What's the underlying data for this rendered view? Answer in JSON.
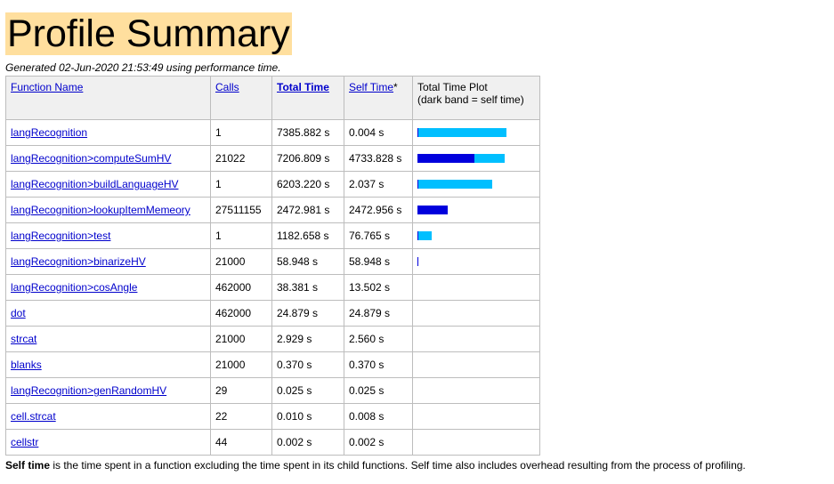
{
  "title": "Profile Summary",
  "generated": "Generated 02-Jun-2020 21:53:49 using performance time.",
  "headers": {
    "function_name": "Function Name",
    "calls": "Calls",
    "total_time": "Total Time",
    "self_time": "Self Time",
    "self_time_star": "*",
    "plot_line1": "Total Time Plot",
    "plot_line2": "(dark band = self time)"
  },
  "rows": [
    {
      "name": "langRecognition",
      "calls": "1",
      "total": "7385.882 s",
      "self": "0.004 s",
      "total_frac": 1.0,
      "self_frac": 0.0
    },
    {
      "name": "langRecognition>computeSumHV",
      "calls": "21022",
      "total": "7206.809 s",
      "self": "4733.828 s",
      "total_frac": 0.976,
      "self_frac": 0.641
    },
    {
      "name": "langRecognition>buildLanguageHV",
      "calls": "1",
      "total": "6203.220 s",
      "self": "2.037 s",
      "total_frac": 0.84,
      "self_frac": 0.0003
    },
    {
      "name": "langRecognition>lookupItemMemeory",
      "calls": "27511155",
      "total": "2472.981 s",
      "self": "2472.956 s",
      "total_frac": 0.335,
      "self_frac": 0.335
    },
    {
      "name": "langRecognition>test",
      "calls": "1",
      "total": "1182.658 s",
      "self": "76.765 s",
      "total_frac": 0.16,
      "self_frac": 0.0104
    },
    {
      "name": "langRecognition>binarizeHV",
      "calls": "21000",
      "total": "58.948 s",
      "self": "58.948 s",
      "total_frac": 0.008,
      "self_frac": 0.008
    },
    {
      "name": "langRecognition>cosAngle",
      "calls": "462000",
      "total": "38.381 s",
      "self": "13.502 s",
      "total_frac": 0,
      "self_frac": 0
    },
    {
      "name": "dot",
      "calls": "462000",
      "total": "24.879 s",
      "self": "24.879 s",
      "total_frac": 0,
      "self_frac": 0
    },
    {
      "name": "strcat",
      "calls": "21000",
      "total": "2.929 s",
      "self": "2.560 s",
      "total_frac": 0,
      "self_frac": 0
    },
    {
      "name": "blanks",
      "calls": "21000",
      "total": "0.370 s",
      "self": "0.370 s",
      "total_frac": 0,
      "self_frac": 0
    },
    {
      "name": "langRecognition>genRandomHV",
      "calls": "29",
      "total": "0.025 s",
      "self": "0.025 s",
      "total_frac": 0,
      "self_frac": 0
    },
    {
      "name": "cell.strcat",
      "calls": "22",
      "total": "0.010 s",
      "self": "0.008 s",
      "total_frac": 0,
      "self_frac": 0
    },
    {
      "name": "cellstr",
      "calls": "44",
      "total": "0.002 s",
      "self": "0.002 s",
      "total_frac": 0,
      "self_frac": 0
    }
  ],
  "footer": {
    "term": "Self time",
    "text": " is the time spent in a function excluding the time spent in its child functions. Self time also includes overhead resulting from the process of profiling."
  },
  "colors": {
    "total_bar": "#00bfff",
    "self_bar": "#0000dd",
    "title_bg": "#ffdf9e"
  }
}
